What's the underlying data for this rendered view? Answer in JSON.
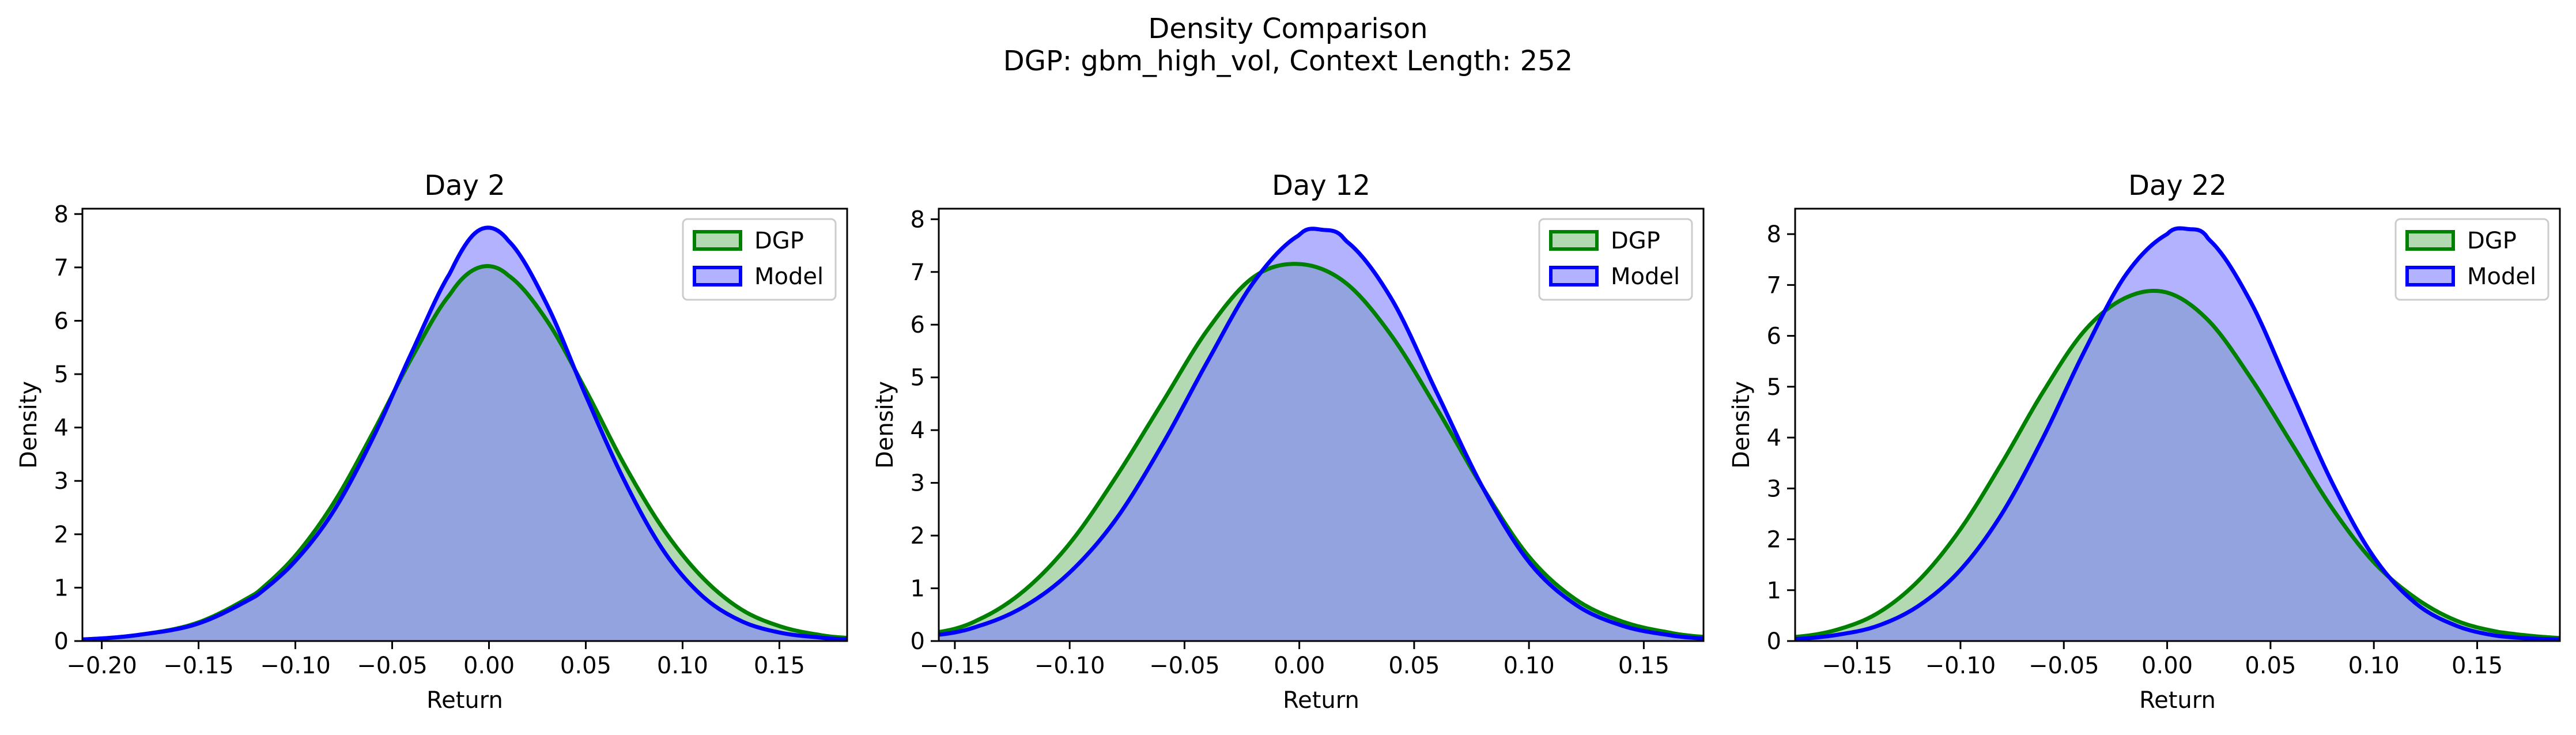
{
  "figure": {
    "title_line1": "Density Comparison",
    "title_line2": "DGP: gbm_high_vol, Context Length: 252"
  },
  "colors": {
    "dgp_line": "#008000",
    "dgp_fill": "#7fbf7f",
    "model_line": "#0000ff",
    "model_fill": "#7f7fff",
    "overlap_fill": "#7f98c7"
  },
  "chart_data": [
    {
      "type": "area",
      "title": "Day 2",
      "xlabel": "Return",
      "ylabel": "Density",
      "xlim": [
        -0.21,
        0.185
      ],
      "ylim": [
        0,
        8.1
      ],
      "xticks": [
        -0.2,
        -0.15,
        -0.1,
        -0.05,
        0.0,
        0.05,
        0.1,
        0.15
      ],
      "xtick_labels": [
        "−0.20",
        "−0.15",
        "−0.10",
        "−0.05",
        "0.00",
        "0.05",
        "0.10",
        "0.15"
      ],
      "yticks": [
        0,
        1,
        2,
        3,
        4,
        5,
        6,
        7,
        8
      ],
      "ytick_labels": [
        "0",
        "1",
        "2",
        "3",
        "4",
        "5",
        "6",
        "7",
        "8"
      ],
      "legend": {
        "position": "upper right",
        "entries": [
          "DGP",
          "Model"
        ]
      },
      "series": [
        {
          "name": "DGP",
          "x": [
            -0.21,
            -0.18,
            -0.15,
            -0.12,
            -0.1,
            -0.08,
            -0.06,
            -0.04,
            -0.02,
            -0.005,
            0.01,
            0.03,
            0.05,
            0.07,
            0.09,
            0.11,
            0.13,
            0.15,
            0.17,
            0.185
          ],
          "y": [
            0.03,
            0.12,
            0.35,
            0.9,
            1.6,
            2.6,
            3.9,
            5.3,
            6.5,
            7.0,
            6.85,
            6.0,
            4.7,
            3.3,
            2.1,
            1.2,
            0.6,
            0.28,
            0.12,
            0.06
          ]
        },
        {
          "name": "Model",
          "x": [
            -0.21,
            -0.18,
            -0.15,
            -0.12,
            -0.1,
            -0.08,
            -0.06,
            -0.04,
            -0.02,
            -0.005,
            0.01,
            0.03,
            0.05,
            0.07,
            0.09,
            0.11,
            0.13,
            0.15,
            0.17,
            0.185
          ],
          "y": [
            0.03,
            0.12,
            0.33,
            0.85,
            1.5,
            2.45,
            3.8,
            5.4,
            6.9,
            7.7,
            7.5,
            6.3,
            4.6,
            3.0,
            1.7,
            0.85,
            0.38,
            0.16,
            0.07,
            0.03
          ]
        }
      ]
    },
    {
      "type": "area",
      "title": "Day 12",
      "xlabel": "Return",
      "ylabel": "Density",
      "xlim": [
        -0.157,
        0.176
      ],
      "ylim": [
        0,
        8.2
      ],
      "xticks": [
        -0.15,
        -0.1,
        -0.05,
        0.0,
        0.05,
        0.1,
        0.15
      ],
      "xtick_labels": [
        "−0.15",
        "−0.10",
        "−0.05",
        "0.00",
        "0.05",
        "0.10",
        "0.15"
      ],
      "yticks": [
        0,
        1,
        2,
        3,
        4,
        5,
        6,
        7,
        8
      ],
      "ytick_labels": [
        "0",
        "1",
        "2",
        "3",
        "4",
        "5",
        "6",
        "7",
        "8"
      ],
      "legend": {
        "position": "upper right",
        "entries": [
          "DGP",
          "Model"
        ]
      },
      "series": [
        {
          "name": "DGP",
          "x": [
            -0.157,
            -0.14,
            -0.12,
            -0.1,
            -0.08,
            -0.06,
            -0.04,
            -0.02,
            0.0,
            0.02,
            0.04,
            0.06,
            0.08,
            0.1,
            0.12,
            0.14,
            0.16,
            0.176
          ],
          "y": [
            0.17,
            0.4,
            0.95,
            1.85,
            3.1,
            4.5,
            5.9,
            6.9,
            7.15,
            6.8,
            5.8,
            4.4,
            2.9,
            1.6,
            0.8,
            0.38,
            0.17,
            0.08
          ]
        },
        {
          "name": "Model",
          "x": [
            -0.157,
            -0.14,
            -0.12,
            -0.1,
            -0.08,
            -0.06,
            -0.04,
            -0.02,
            0.0,
            0.01,
            0.02,
            0.04,
            0.06,
            0.08,
            0.1,
            0.12,
            0.14,
            0.16,
            0.176
          ],
          "y": [
            0.12,
            0.28,
            0.65,
            1.3,
            2.3,
            3.7,
            5.3,
            6.8,
            7.7,
            7.8,
            7.6,
            6.5,
            4.7,
            2.9,
            1.5,
            0.7,
            0.3,
            0.12,
            0.05
          ]
        }
      ]
    },
    {
      "type": "area",
      "title": "Day 22",
      "xlabel": "Return",
      "ylabel": "Density",
      "xlim": [
        -0.18,
        0.19
      ],
      "ylim": [
        0,
        8.5
      ],
      "xticks": [
        -0.15,
        -0.1,
        -0.05,
        0.0,
        0.05,
        0.1,
        0.15
      ],
      "xtick_labels": [
        "−0.15",
        "−0.10",
        "−0.05",
        "0.00",
        "0.05",
        "0.10",
        "0.15"
      ],
      "yticks": [
        0,
        1,
        2,
        3,
        4,
        5,
        6,
        7,
        8
      ],
      "ytick_labels": [
        "0",
        "1",
        "2",
        "3",
        "4",
        "5",
        "6",
        "7",
        "8"
      ],
      "legend": {
        "position": "upper right",
        "entries": [
          "DGP",
          "Model"
        ]
      },
      "series": [
        {
          "name": "DGP",
          "x": [
            -0.18,
            -0.16,
            -0.14,
            -0.12,
            -0.1,
            -0.08,
            -0.06,
            -0.04,
            -0.02,
            0.0,
            0.02,
            0.04,
            0.06,
            0.08,
            0.1,
            0.12,
            0.14,
            0.16,
            0.19
          ],
          "y": [
            0.08,
            0.22,
            0.55,
            1.2,
            2.2,
            3.5,
            4.9,
            6.1,
            6.75,
            6.85,
            6.3,
            5.2,
            3.9,
            2.6,
            1.55,
            0.85,
            0.4,
            0.18,
            0.06
          ]
        },
        {
          "name": "Model",
          "x": [
            -0.18,
            -0.16,
            -0.14,
            -0.12,
            -0.1,
            -0.08,
            -0.06,
            -0.04,
            -0.02,
            0.0,
            0.01,
            0.02,
            0.04,
            0.06,
            0.08,
            0.1,
            0.12,
            0.14,
            0.16,
            0.19
          ],
          "y": [
            0.04,
            0.12,
            0.3,
            0.7,
            1.4,
            2.5,
            4.0,
            5.7,
            7.2,
            8.0,
            8.1,
            7.9,
            6.7,
            4.9,
            3.1,
            1.65,
            0.75,
            0.3,
            0.1,
            0.03
          ]
        }
      ]
    }
  ]
}
